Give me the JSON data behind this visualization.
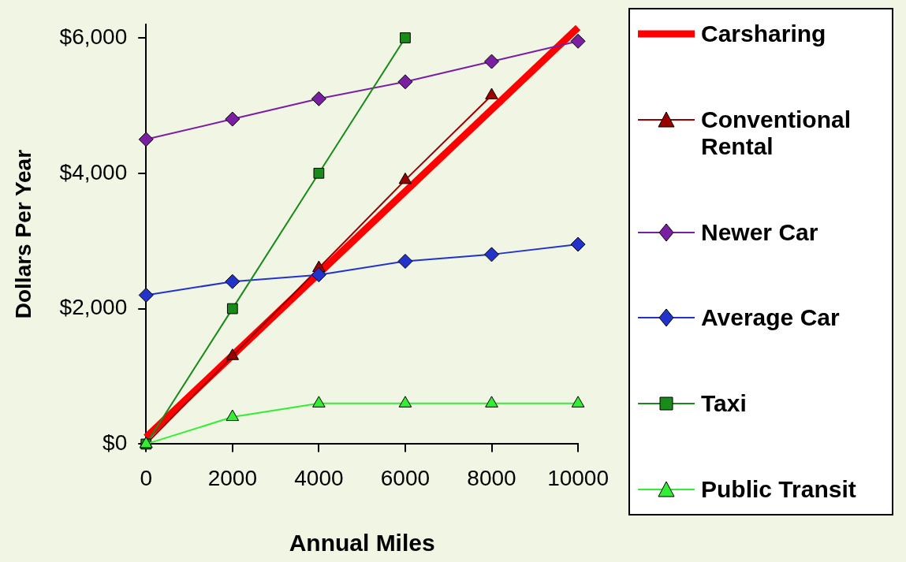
{
  "chart_data": {
    "type": "line",
    "xlabel": "Annual Miles",
    "ylabel": "Dollars Per Year",
    "x": [
      0,
      2000,
      4000,
      6000,
      8000,
      10000
    ],
    "xlim": [
      0,
      10000
    ],
    "xticks": [
      0,
      2000,
      4000,
      6000,
      8000,
      10000
    ],
    "ylim": [
      0,
      6200
    ],
    "yticks": [
      {
        "value": 0,
        "label": "$0"
      },
      {
        "value": 2000,
        "label": "$2,000"
      },
      {
        "value": 4000,
        "label": "$4,000"
      },
      {
        "value": 6000,
        "label": "$6,000"
      }
    ],
    "grid": false,
    "legend": "right",
    "series": [
      {
        "name": "Carsharing",
        "color": "#ff0000",
        "marker": "none",
        "x": [
          0,
          10000
        ],
        "values": [
          100,
          6150
        ]
      },
      {
        "name": "Conventional Rental",
        "color": "#990000",
        "marker": "triangle",
        "values": [
          0,
          1300,
          2600,
          3900,
          5150,
          null
        ]
      },
      {
        "name": "Newer Car",
        "color": "#7a1fa2",
        "marker": "diamond",
        "values": [
          4500,
          4800,
          5100,
          5350,
          5650,
          5950
        ]
      },
      {
        "name": "Average Car",
        "color": "#2233cc",
        "marker": "diamond",
        "values": [
          2200,
          2400,
          2500,
          2700,
          2800,
          2950
        ]
      },
      {
        "name": "Taxi",
        "color": "#1a8a1a",
        "marker": "square",
        "values": [
          0,
          2000,
          4000,
          6000,
          null,
          null
        ]
      },
      {
        "name": "Public Transit",
        "color": "#33ee33",
        "marker": "triangle",
        "values": [
          0,
          400,
          600,
          600,
          600,
          600
        ]
      }
    ]
  }
}
